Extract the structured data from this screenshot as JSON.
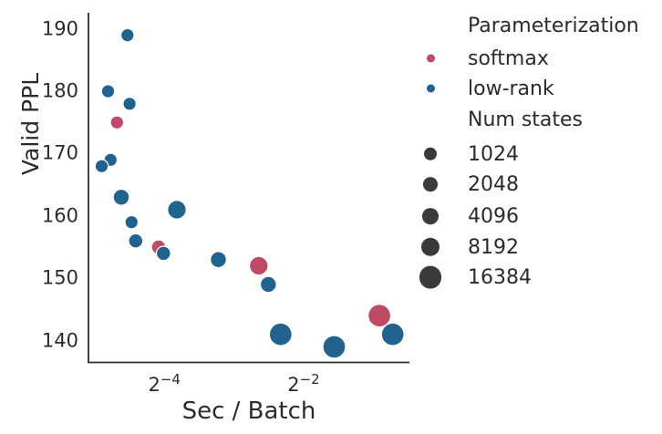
{
  "figure": {
    "background": "#ffffff",
    "text_color": "#2b2b2b",
    "spine_color": "#2e2e2e"
  },
  "chart_data": {
    "type": "scatter",
    "xlabel": "Sec / Batch",
    "ylabel": "Valid PPL",
    "x_scale": "log2",
    "grid": false,
    "legend_position": "right",
    "xlim_log2": [
      -5.09,
      -0.48
    ],
    "ylim": [
      136.5,
      192.6
    ],
    "x_ticks": [
      {
        "base": "2",
        "exp": "−4",
        "log2": -4
      },
      {
        "base": "2",
        "exp": "−2",
        "log2": -2
      }
    ],
    "y_ticks": [
      {
        "label": "190",
        "value": 190
      },
      {
        "label": "180",
        "value": 180
      },
      {
        "label": "170",
        "value": 170
      },
      {
        "label": "160",
        "value": 160
      },
      {
        "label": "150",
        "value": 150
      },
      {
        "label": "140",
        "value": 140
      }
    ],
    "hue_legend_title": "Parameterization",
    "size_legend_title": "Num states",
    "size_legend_entries": [
      {
        "label": "1024",
        "num_states": 1024
      },
      {
        "label": "2048",
        "num_states": 2048
      },
      {
        "label": "4096",
        "num_states": 4096
      },
      {
        "label": "8192",
        "num_states": 8192
      },
      {
        "label": "16384",
        "num_states": 16384
      }
    ],
    "size_marker_color": "#3a3a3a",
    "marker_radius_px": {
      "1024": 7.2,
      "2048": 7.8,
      "4096": 8.8,
      "8192": 10.2,
      "16384": 12.4
    },
    "legend_hue_marker_radius_px": 4.5,
    "series": [
      {
        "name": "softmax",
        "color": "#bf4a68",
        "points": [
          {
            "sec_per_batch": 0.039,
            "valid_ppl": 175,
            "num_states": 1024
          },
          {
            "sec_per_batch": 0.059,
            "valid_ppl": 155,
            "num_states": 2048
          },
          {
            "sec_per_batch": 0.16,
            "valid_ppl": 152,
            "num_states": 8192
          },
          {
            "sec_per_batch": 0.532,
            "valid_ppl": 144,
            "num_states": 16384
          }
        ]
      },
      {
        "name": "low-rank",
        "color": "#21638f",
        "points": [
          {
            "sec_per_batch": 0.0433,
            "valid_ppl": 189,
            "num_states": 1024
          },
          {
            "sec_per_batch": 0.0357,
            "valid_ppl": 180,
            "num_states": 1024
          },
          {
            "sec_per_batch": 0.0442,
            "valid_ppl": 178,
            "num_states": 1024
          },
          {
            "sec_per_batch": 0.0366,
            "valid_ppl": 169,
            "num_states": 1024
          },
          {
            "sec_per_batch": 0.0335,
            "valid_ppl": 168,
            "num_states": 1024
          },
          {
            "sec_per_batch": 0.0407,
            "valid_ppl": 163,
            "num_states": 4096
          },
          {
            "sec_per_batch": 0.0708,
            "valid_ppl": 161,
            "num_states": 8192
          },
          {
            "sec_per_batch": 0.0451,
            "valid_ppl": 159,
            "num_states": 1024
          },
          {
            "sec_per_batch": 0.047,
            "valid_ppl": 156,
            "num_states": 2048
          },
          {
            "sec_per_batch": 0.062,
            "valid_ppl": 154,
            "num_states": 2048
          },
          {
            "sec_per_batch": 0.107,
            "valid_ppl": 153,
            "num_states": 4096
          },
          {
            "sec_per_batch": 0.176,
            "valid_ppl": 149,
            "num_states": 4096
          },
          {
            "sec_per_batch": 0.199,
            "valid_ppl": 141,
            "num_states": 16384
          },
          {
            "sec_per_batch": 0.339,
            "valid_ppl": 139,
            "num_states": 16384
          },
          {
            "sec_per_batch": 0.607,
            "valid_ppl": 141,
            "num_states": 16384
          }
        ]
      }
    ]
  }
}
